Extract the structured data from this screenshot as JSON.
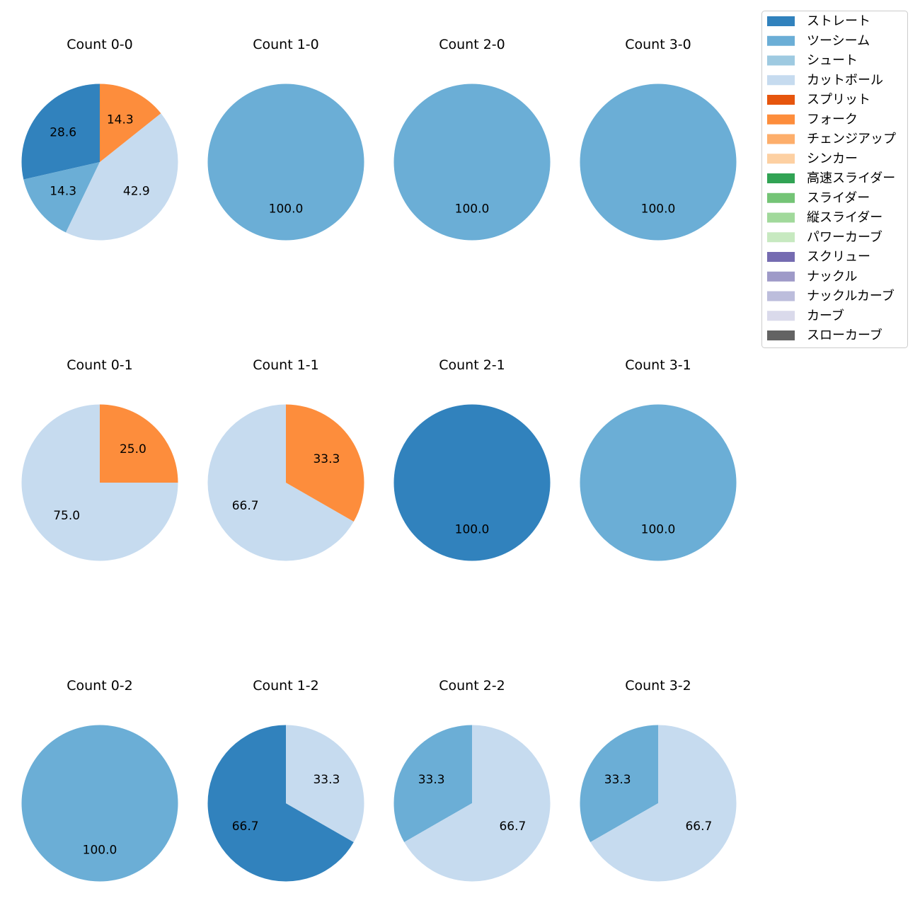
{
  "chart_data": {
    "type": "pie",
    "legend": {
      "placement": "top-right",
      "entries": [
        {
          "name": "ストレート",
          "color": "#3182bd"
        },
        {
          "name": "ツーシーム",
          "color": "#6baed6"
        },
        {
          "name": "シュート",
          "color": "#9ecae1"
        },
        {
          "name": "カットボール",
          "color": "#c6dbef"
        },
        {
          "name": "スプリット",
          "color": "#e6550d"
        },
        {
          "name": "フォーク",
          "color": "#fd8d3c"
        },
        {
          "name": "チェンジアップ",
          "color": "#fdae6b"
        },
        {
          "name": "シンカー",
          "color": "#fdd0a2"
        },
        {
          "name": "高速スライダー",
          "color": "#31a354"
        },
        {
          "name": "スライダー",
          "color": "#74c476"
        },
        {
          "name": "縦スライダー",
          "color": "#a1d99b"
        },
        {
          "name": "パワーカーブ",
          "color": "#c7e9c0"
        },
        {
          "name": "スクリュー",
          "color": "#756bb1"
        },
        {
          "name": "ナックル",
          "color": "#9e9ac8"
        },
        {
          "name": "ナックルカーブ",
          "color": "#bcbddc"
        },
        {
          "name": "カーブ",
          "color": "#dadaeb"
        },
        {
          "name": "スローカーブ",
          "color": "#636363"
        }
      ]
    },
    "pies": [
      {
        "title": "Count 0-0",
        "slices": [
          {
            "pitch": "ストレート",
            "value": 28.6,
            "label": "28.6"
          },
          {
            "pitch": "ツーシーム",
            "value": 14.3,
            "label": "14.3"
          },
          {
            "pitch": "カットボール",
            "value": 42.9,
            "label": "42.9"
          },
          {
            "pitch": "フォーク",
            "value": 14.3,
            "label": "14.3"
          }
        ]
      },
      {
        "title": "Count 1-0",
        "slices": [
          {
            "pitch": "ツーシーム",
            "value": 100.0,
            "label": "100.0"
          }
        ]
      },
      {
        "title": "Count 2-0",
        "slices": [
          {
            "pitch": "ツーシーム",
            "value": 100.0,
            "label": "100.0"
          }
        ]
      },
      {
        "title": "Count 3-0",
        "slices": [
          {
            "pitch": "ツーシーム",
            "value": 100.0,
            "label": "100.0"
          }
        ]
      },
      {
        "title": "Count 0-1",
        "slices": [
          {
            "pitch": "カットボール",
            "value": 75.0,
            "label": "75.0"
          },
          {
            "pitch": "フォーク",
            "value": 25.0,
            "label": "25.0"
          }
        ]
      },
      {
        "title": "Count 1-1",
        "slices": [
          {
            "pitch": "カットボール",
            "value": 66.7,
            "label": "66.7"
          },
          {
            "pitch": "フォーク",
            "value": 33.3,
            "label": "33.3"
          }
        ]
      },
      {
        "title": "Count 2-1",
        "slices": [
          {
            "pitch": "ストレート",
            "value": 100.0,
            "label": "100.0"
          }
        ]
      },
      {
        "title": "Count 3-1",
        "slices": [
          {
            "pitch": "ツーシーム",
            "value": 100.0,
            "label": "100.0"
          }
        ]
      },
      {
        "title": "Count 0-2",
        "slices": [
          {
            "pitch": "ツーシーム",
            "value": 100.0,
            "label": "100.0"
          }
        ]
      },
      {
        "title": "Count 1-2",
        "slices": [
          {
            "pitch": "ストレート",
            "value": 66.7,
            "label": "66.7"
          },
          {
            "pitch": "カットボール",
            "value": 33.3,
            "label": "33.3"
          }
        ]
      },
      {
        "title": "Count 2-2",
        "slices": [
          {
            "pitch": "ツーシーム",
            "value": 33.3,
            "label": "33.3"
          },
          {
            "pitch": "カットボール",
            "value": 66.7,
            "label": "66.7"
          }
        ]
      },
      {
        "title": "Count 3-2",
        "slices": [
          {
            "pitch": "ツーシーム",
            "value": 33.3,
            "label": "33.3"
          },
          {
            "pitch": "カットボール",
            "value": 66.7,
            "label": "66.7"
          }
        ]
      }
    ]
  }
}
